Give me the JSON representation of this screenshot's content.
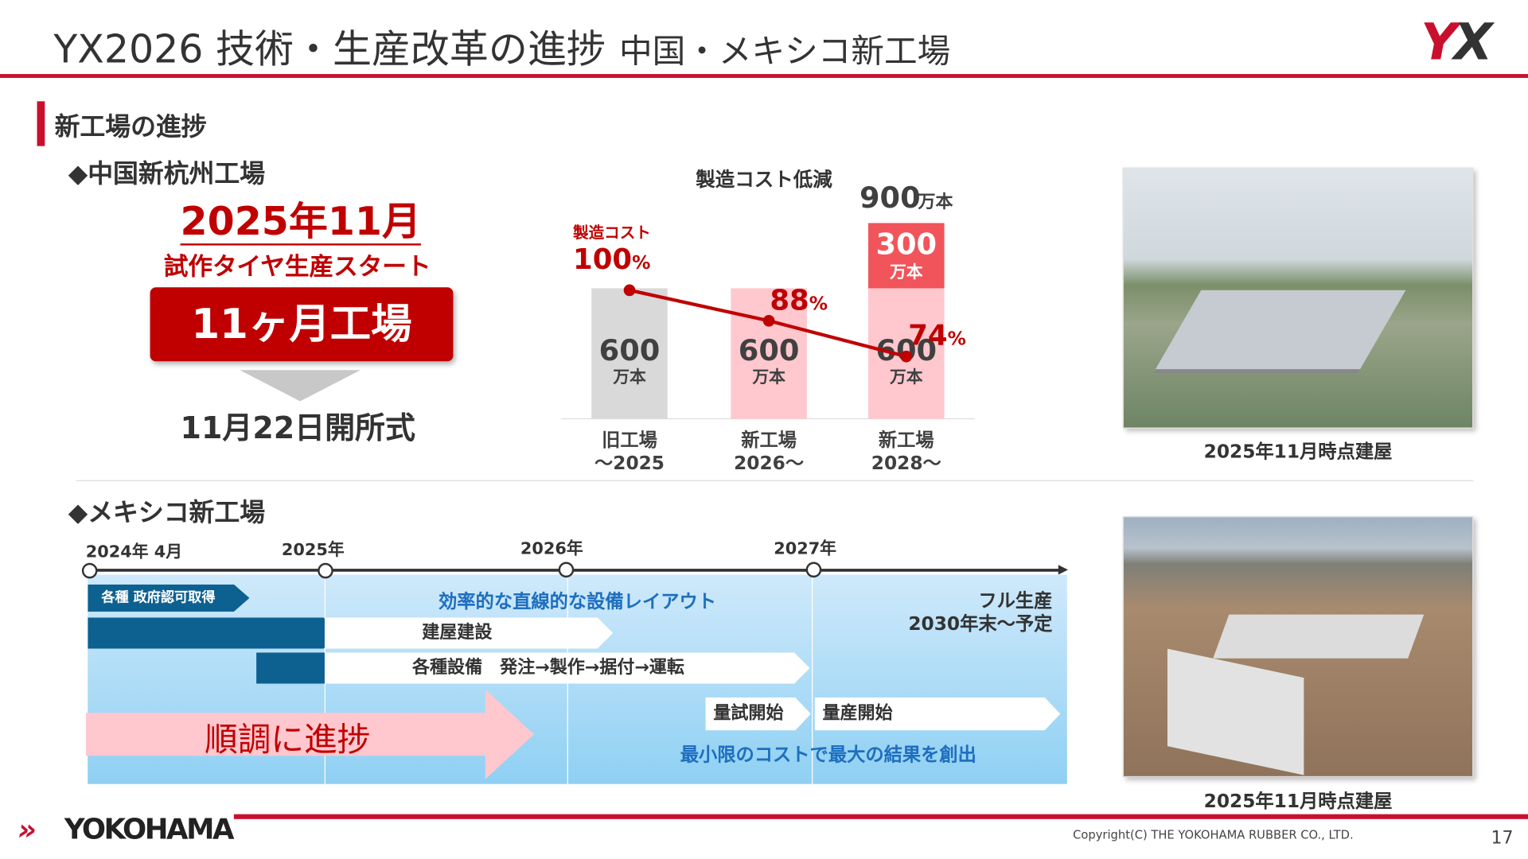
{
  "header": {
    "title": "YX2026 技術・生産改革の進捗",
    "subtitle": "中国・メキシコ新工場",
    "logo": "YX"
  },
  "section_title": "新工場の進捗",
  "china": {
    "heading": "◆中国新杭州工場",
    "date": "2025年11月",
    "trial": "試作タイヤ生産スタート",
    "badge": "11ヶ月工場",
    "ceremony": "11月22日開所式",
    "photo_caption": "2025年11月時点建屋"
  },
  "chart_data": {
    "type": "bar",
    "title": "製造コスト低減",
    "categories": [
      "旧工場\n～2025",
      "新工場\n2026～",
      "新工場\n2028～"
    ],
    "category_lines": [
      [
        "旧工場",
        "～2025"
      ],
      [
        "新工場",
        "2026～"
      ],
      [
        "新工場",
        "2028～"
      ]
    ],
    "unit": "万本",
    "series": [
      {
        "name": "base",
        "values": [
          600,
          600,
          600
        ],
        "labels": [
          "600",
          "600",
          "600"
        ]
      },
      {
        "name": "additional",
        "values": [
          0,
          0,
          300
        ],
        "labels": [
          "",
          "",
          "300"
        ]
      }
    ],
    "total_label": {
      "value": "900",
      "unit": "万本"
    },
    "line": {
      "name": "製造コスト",
      "values": [
        100,
        88,
        74
      ],
      "labels": [
        "100",
        "88",
        "74"
      ],
      "suffix": "%"
    },
    "colors": {
      "old": "#d9d9d9",
      "new": "#ffc7ce",
      "add": "#f2545b",
      "line": "#c00000"
    }
  },
  "mexico": {
    "heading": "◆メキシコ新工場",
    "milestones": [
      "2024年 4月",
      "2025年",
      "2026年",
      "2027年"
    ],
    "permit": "各種 政府認可取得",
    "layout": "効率的な直線的な設備レイアウト",
    "building": "建屋建設",
    "equipment": "各種設備　発注→製作→据付→運転",
    "trial_start": "量試開始",
    "mass_start": "量産開始",
    "full_prod_1": "フル生産",
    "full_prod_2": "2030年末～予定",
    "progress": "順調に進捗",
    "slogan": "最小限のコストで最大の結果を創出",
    "photo_caption": "2025年11月時点建屋"
  },
  "footer": {
    "brand": "YOKOHAMA",
    "copyright": "Copyright(C) THE YOKOHAMA RUBBER CO., LTD.",
    "page": "17"
  }
}
